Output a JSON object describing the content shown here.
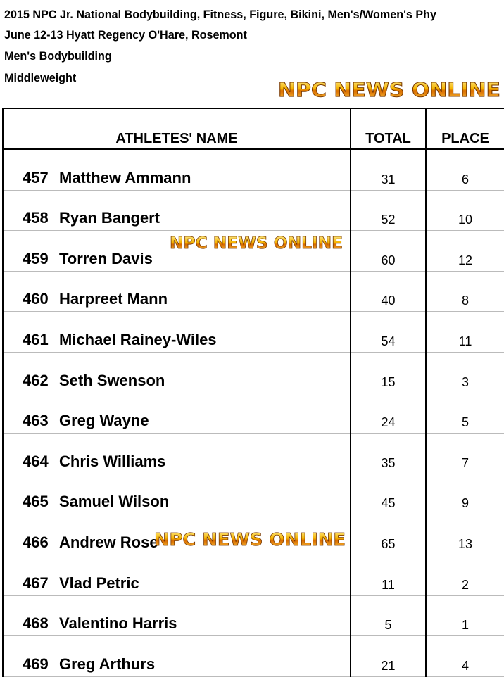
{
  "header": {
    "line1": "2015 NPC Jr. National Bodybuilding, Fitness, Figure, Bikini, Men's/Women's Phy",
    "line2": "June 12-13 Hyatt Regency O'Hare, Rosemont",
    "line3": "Men's Bodybuilding",
    "line4": "Middleweight"
  },
  "watermark": "NPC NEWS ONLINE",
  "table": {
    "columns": [
      "ATHLETES' NAME",
      "TOTAL",
      "PLACE"
    ],
    "rows": [
      {
        "number": "457",
        "name": "Matthew Ammann",
        "total": "31",
        "place": "6"
      },
      {
        "number": "458",
        "name": "Ryan Bangert",
        "total": "52",
        "place": "10"
      },
      {
        "number": "459",
        "name": "Torren Davis",
        "total": "60",
        "place": "12"
      },
      {
        "number": "460",
        "name": "Harpreet Mann",
        "total": "40",
        "place": "8"
      },
      {
        "number": "461",
        "name": "Michael Rainey-Wiles",
        "total": "54",
        "place": "11"
      },
      {
        "number": "462",
        "name": "Seth Swenson",
        "total": "15",
        "place": "3"
      },
      {
        "number": "463",
        "name": "Greg Wayne",
        "total": "24",
        "place": "5"
      },
      {
        "number": "464",
        "name": "Chris Williams",
        "total": "35",
        "place": "7"
      },
      {
        "number": "465",
        "name": "Samuel Wilson",
        "total": "45",
        "place": "9"
      },
      {
        "number": "466",
        "name": "Andrew Rose",
        "total": "65",
        "place": "13"
      },
      {
        "number": "467",
        "name": "Vlad Petric",
        "total": "11",
        "place": "2"
      },
      {
        "number": "468",
        "name": "Valentino Harris",
        "total": "5",
        "place": "1"
      },
      {
        "number": "469",
        "name": "Greg Arthurs",
        "total": "21",
        "place": "4"
      }
    ]
  }
}
